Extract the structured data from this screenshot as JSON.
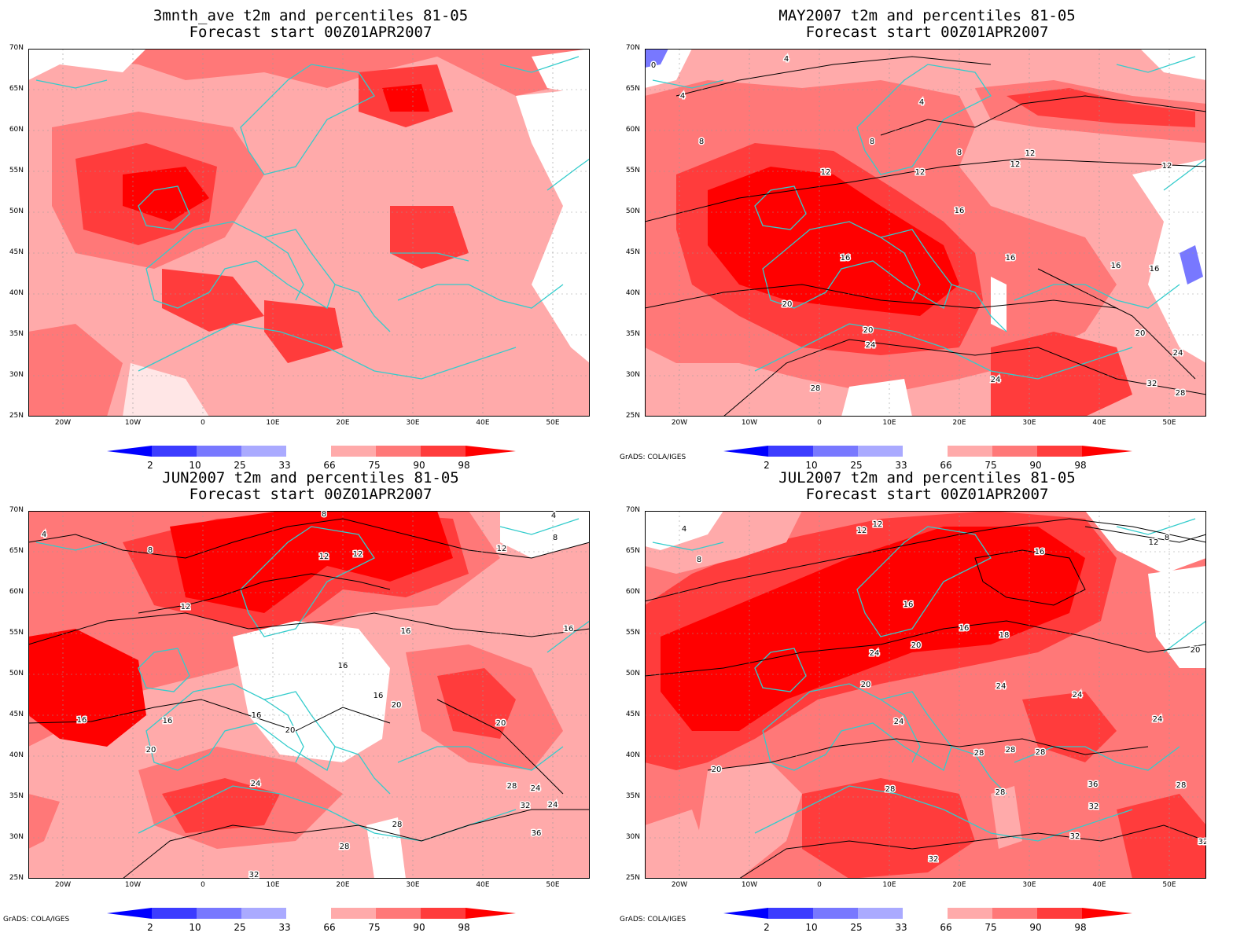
{
  "panels": [
    {
      "id": "p1",
      "title1": "3mnth_ave t2m and percentiles 81-05",
      "title2": "Forecast start 00Z01APR2007",
      "credit": ""
    },
    {
      "id": "p2",
      "title1": "MAY2007 t2m and percentiles 81-05",
      "title2": "Forecast start 00Z01APR2007",
      "credit": "GrADS: COLA/IGES",
      "contour_labels": [
        "4",
        "4",
        "4",
        "8",
        "8",
        "8",
        "12",
        "12",
        "12",
        "12",
        "12",
        "16",
        "16",
        "16",
        "16",
        "16",
        "20",
        "20",
        "20",
        "24",
        "24",
        "24",
        "28",
        "28",
        "32",
        "0"
      ]
    },
    {
      "id": "p3",
      "title1": "JUN2007 t2m and percentiles 81-05",
      "title2": "Forecast start 00Z01APR2007",
      "credit": "GrADS: COLA/IGES",
      "contour_labels": [
        "4",
        "4",
        "8",
        "8",
        "8",
        "12",
        "12",
        "12",
        "12",
        "16",
        "16",
        "16",
        "16",
        "16",
        "16",
        "16",
        "20",
        "20",
        "20",
        "20",
        "24",
        "24",
        "24",
        "28",
        "28",
        "28",
        "32",
        "32",
        "36"
      ]
    },
    {
      "id": "p4",
      "title1": "JUL2007 t2m and percentiles 81-05",
      "title2": "Forecast start 00Z01APR2007",
      "credit": "GrADS: COLA/IGES",
      "contour_labels": [
        "4",
        "8",
        "8",
        "12",
        "12",
        "12",
        "16",
        "16",
        "16",
        "18",
        "20",
        "20",
        "20",
        "20",
        "24",
        "24",
        "24",
        "24",
        "24",
        "28",
        "28",
        "28",
        "28",
        "28",
        "28",
        "32",
        "32",
        "32",
        "32",
        "36"
      ]
    }
  ],
  "axes": {
    "lat_labels": [
      "70N",
      "65N",
      "60N",
      "55N",
      "50N",
      "45N",
      "40N",
      "35N",
      "30N",
      "25N"
    ],
    "lon_labels": [
      "20W",
      "10W",
      "0",
      "10E",
      "20E",
      "30E",
      "40E",
      "50E"
    ]
  },
  "colorbar": {
    "labels": [
      "2",
      "10",
      "25",
      "33",
      "66",
      "75",
      "90",
      "98"
    ],
    "colors": [
      "#0000ff",
      "#3c3cff",
      "#7878ff",
      "#aaaaff",
      "#ffffff",
      "#ffaaaa",
      "#ff7878",
      "#ff3c3c",
      "#ff0000"
    ]
  },
  "colors": {
    "coast": "#33cccc",
    "contour": "#000000",
    "grid": "#888888"
  }
}
